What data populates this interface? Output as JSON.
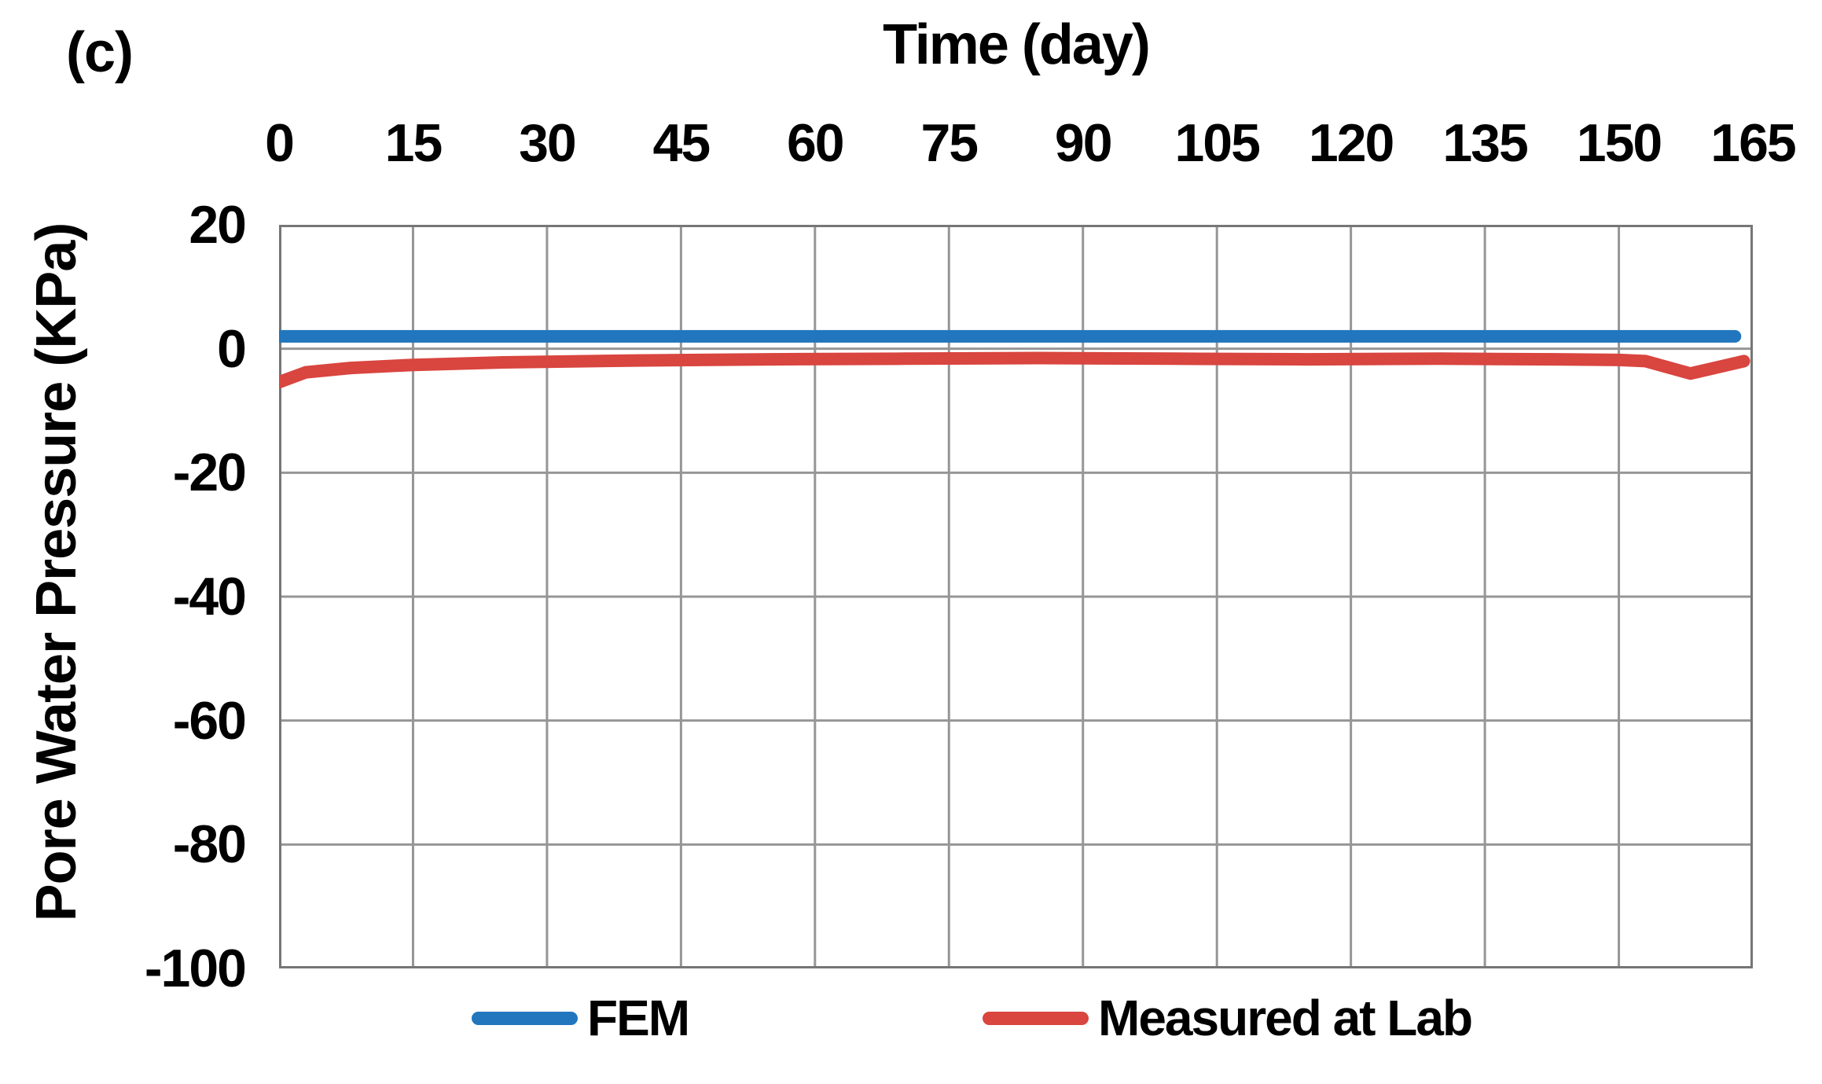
{
  "panel_label": "(c)",
  "colors": {
    "background": "#FFFFFF",
    "grid": "#969696",
    "border": "#767676",
    "text": "#000000",
    "fem_blue": "#2176BD",
    "measured_red": "#D9453F"
  },
  "chart_data": {
    "type": "line",
    "title": "",
    "xlabel": "Time (day)",
    "xlabel_position": "top",
    "ylabel": "Pore Water Pressure (KPa)",
    "xlim": [
      0,
      165
    ],
    "ylim": [
      -100,
      20
    ],
    "x_ticks": [
      0,
      15,
      30,
      45,
      60,
      75,
      90,
      105,
      120,
      135,
      150,
      165
    ],
    "y_ticks": [
      20,
      0,
      -20,
      -40,
      -60,
      -80,
      -100
    ],
    "grid": true,
    "legend_position": "bottom",
    "series": [
      {
        "name": "FEM",
        "color": "#2176BD",
        "points": [
          [
            0,
            2
          ],
          [
            15,
            2
          ],
          [
            30,
            2
          ],
          [
            45,
            2
          ],
          [
            60,
            2
          ],
          [
            75,
            2
          ],
          [
            90,
            2
          ],
          [
            105,
            2
          ],
          [
            120,
            2
          ],
          [
            135,
            2
          ],
          [
            150,
            2
          ],
          [
            163,
            2
          ]
        ]
      },
      {
        "name": "Measured at Lab",
        "color": "#D9453F",
        "points": [
          [
            0,
            -5.4
          ],
          [
            3,
            -3.8
          ],
          [
            8,
            -3.1
          ],
          [
            15,
            -2.6
          ],
          [
            25,
            -2.2
          ],
          [
            40,
            -1.9
          ],
          [
            55,
            -1.7
          ],
          [
            70,
            -1.6
          ],
          [
            85,
            -1.5
          ],
          [
            100,
            -1.6
          ],
          [
            115,
            -1.7
          ],
          [
            130,
            -1.6
          ],
          [
            143,
            -1.7
          ],
          [
            150,
            -1.8
          ],
          [
            153,
            -2.0
          ],
          [
            158,
            -4.0
          ],
          [
            164,
            -2.0
          ]
        ]
      }
    ]
  }
}
